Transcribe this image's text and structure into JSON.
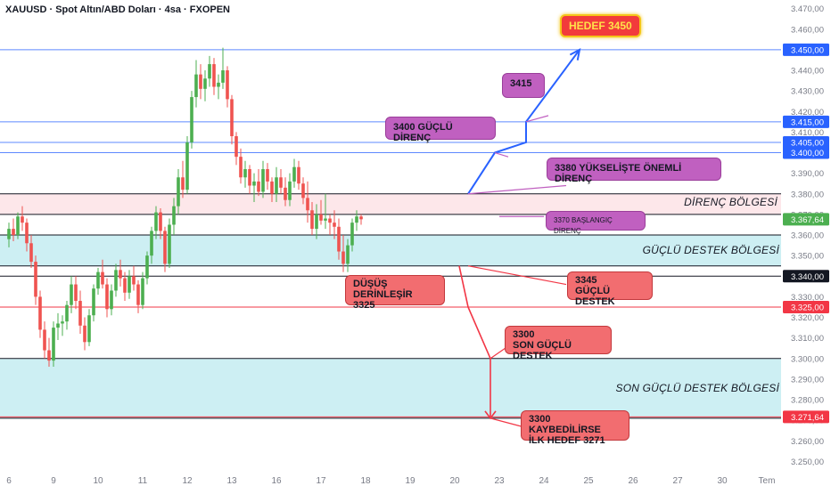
{
  "header": {
    "title": "XAUUSD · Spot Altın/ABD Doları · 4sa · FXOPEN"
  },
  "colors": {
    "up": "#26a69a",
    "up_fill": "#4caf50",
    "down": "#ef5350",
    "blue": "#2962ff",
    "resistance_zone": "#fde7ea",
    "support_zone": "#cdeff3",
    "note_purple": "#c060c0",
    "note_red": "#f26d70",
    "level_red": "#f23645",
    "axis_text": "#787b86"
  },
  "chart_data": {
    "type": "candlestick",
    "symbol": "XAUUSD",
    "timeframe": "4sa",
    "ylim": [
      3245,
      3472
    ],
    "y_ticks": [
      "3.250,00",
      "3.260,00",
      "3.270,00",
      "3.280,00",
      "3.290,00",
      "3.300,00",
      "3.310,00",
      "3.320,00",
      "3.330,00",
      "3.340,00",
      "3.350,00",
      "3.360,00",
      "3.370,00",
      "3.380,00",
      "3.390,00",
      "3.400,00",
      "3.410,00",
      "3.420,00",
      "3.430,00",
      "3.440,00",
      "3.450,00",
      "3.460,00",
      "3.470,00"
    ],
    "y_tick_values": [
      3250,
      3260,
      3270,
      3280,
      3290,
      3300,
      3310,
      3320,
      3330,
      3340,
      3350,
      3360,
      3370,
      3380,
      3390,
      3400,
      3410,
      3420,
      3430,
      3440,
      3450,
      3460,
      3470
    ],
    "x_ticks": [
      "6",
      "9",
      "10",
      "11",
      "12",
      "13",
      "16",
      "17",
      "18",
      "19",
      "20",
      "23",
      "24",
      "25",
      "26",
      "27",
      "30",
      "Tem"
    ],
    "x_tick_index": [
      0,
      10,
      20,
      30,
      40,
      50,
      60,
      70,
      80,
      90,
      100,
      110,
      120,
      130,
      140,
      150,
      160,
      170
    ],
    "candles": [
      [
        3358,
        3366,
        3354,
        3363
      ],
      [
        3363,
        3368,
        3357,
        3360
      ],
      [
        3360,
        3371,
        3358,
        3369
      ],
      [
        3369,
        3374,
        3362,
        3366
      ],
      [
        3366,
        3368,
        3352,
        3356
      ],
      [
        3356,
        3360,
        3344,
        3347
      ],
      [
        3347,
        3350,
        3326,
        3330
      ],
      [
        3330,
        3333,
        3310,
        3314
      ],
      [
        3314,
        3318,
        3300,
        3304
      ],
      [
        3304,
        3310,
        3296,
        3299
      ],
      [
        3299,
        3318,
        3296,
        3315
      ],
      [
        3315,
        3322,
        3309,
        3317
      ],
      [
        3317,
        3321,
        3311,
        3318
      ],
      [
        3318,
        3328,
        3314,
        3326
      ],
      [
        3326,
        3340,
        3322,
        3336
      ],
      [
        3336,
        3340,
        3324,
        3328
      ],
      [
        3328,
        3333,
        3312,
        3316
      ],
      [
        3316,
        3320,
        3304,
        3308
      ],
      [
        3308,
        3324,
        3306,
        3321
      ],
      [
        3321,
        3336,
        3318,
        3334
      ],
      [
        3334,
        3344,
        3331,
        3342
      ],
      [
        3342,
        3348,
        3334,
        3336
      ],
      [
        3336,
        3339,
        3320,
        3324
      ],
      [
        3324,
        3336,
        3321,
        3333
      ],
      [
        3333,
        3346,
        3330,
        3343
      ],
      [
        3343,
        3348,
        3335,
        3339
      ],
      [
        3339,
        3342,
        3328,
        3332
      ],
      [
        3332,
        3343,
        3329,
        3340
      ],
      [
        3340,
        3345,
        3333,
        3336
      ],
      [
        3336,
        3338,
        3322,
        3326
      ],
      [
        3326,
        3342,
        3324,
        3339
      ],
      [
        3339,
        3352,
        3336,
        3350
      ],
      [
        3350,
        3364,
        3346,
        3362
      ],
      [
        3362,
        3374,
        3358,
        3371
      ],
      [
        3371,
        3373,
        3358,
        3362
      ],
      [
        3362,
        3364,
        3342,
        3346
      ],
      [
        3346,
        3368,
        3344,
        3365
      ],
      [
        3365,
        3378,
        3360,
        3374
      ],
      [
        3374,
        3392,
        3370,
        3388
      ],
      [
        3388,
        3396,
        3378,
        3382
      ],
      [
        3382,
        3408,
        3380,
        3405
      ],
      [
        3405,
        3430,
        3402,
        3427
      ],
      [
        3427,
        3445,
        3422,
        3438
      ],
      [
        3438,
        3443,
        3426,
        3431
      ],
      [
        3431,
        3440,
        3425,
        3436
      ],
      [
        3436,
        3447,
        3432,
        3443
      ],
      [
        3443,
        3446,
        3428,
        3432
      ],
      [
        3432,
        3438,
        3426,
        3434
      ],
      [
        3434,
        3451,
        3431,
        3440
      ],
      [
        3440,
        3442,
        3422,
        3426
      ],
      [
        3426,
        3428,
        3404,
        3408
      ],
      [
        3408,
        3410,
        3394,
        3398
      ],
      [
        3398,
        3402,
        3385,
        3388
      ],
      [
        3388,
        3396,
        3383,
        3392
      ],
      [
        3392,
        3394,
        3380,
        3384
      ],
      [
        3384,
        3390,
        3376,
        3386
      ],
      [
        3386,
        3392,
        3379,
        3381
      ],
      [
        3381,
        3396,
        3378,
        3392
      ],
      [
        3392,
        3395,
        3382,
        3386
      ],
      [
        3386,
        3388,
        3376,
        3380
      ],
      [
        3380,
        3393,
        3376,
        3388
      ],
      [
        3388,
        3392,
        3380,
        3383
      ],
      [
        3383,
        3388,
        3374,
        3377
      ],
      [
        3377,
        3390,
        3374,
        3386
      ],
      [
        3386,
        3397,
        3383,
        3393
      ],
      [
        3393,
        3396,
        3382,
        3385
      ],
      [
        3385,
        3388,
        3375,
        3378
      ],
      [
        3378,
        3386,
        3366,
        3372
      ],
      [
        3372,
        3376,
        3360,
        3363
      ],
      [
        3363,
        3375,
        3358,
        3370
      ],
      [
        3370,
        3377,
        3365,
        3367
      ],
      [
        3367,
        3380,
        3363,
        3368
      ],
      [
        3368,
        3370,
        3360,
        3366
      ],
      [
        3366,
        3372,
        3358,
        3364
      ],
      [
        3364,
        3368,
        3348,
        3352
      ],
      [
        3352,
        3360,
        3342,
        3346
      ],
      [
        3346,
        3358,
        3342,
        3355
      ],
      [
        3355,
        3368,
        3352,
        3366
      ],
      [
        3366,
        3372,
        3362,
        3369
      ],
      [
        3369,
        3370,
        3365,
        3367.64
      ]
    ],
    "horizontal_levels": [
      {
        "value": 3450,
        "label": "3.450,00",
        "style": "blue"
      },
      {
        "value": 3415,
        "label": "3.415,00",
        "style": "blue"
      },
      {
        "value": 3405,
        "label": "3.405,00",
        "style": "blue"
      },
      {
        "value": 3400,
        "label": "3.400,00",
        "style": "blue"
      },
      {
        "value": 3367.64,
        "label": "3.367,64",
        "style": "current"
      },
      {
        "value": 3340,
        "label": "3.340,00",
        "style": "black"
      },
      {
        "value": 3325,
        "label": "3.325,00",
        "style": "red"
      },
      {
        "value": 3271.64,
        "label": "3.271,64",
        "style": "red"
      }
    ],
    "zones": [
      {
        "label": "DİRENÇ BÖLGESİ",
        "from": 3370,
        "to": 3380,
        "color": "resistance_zone"
      },
      {
        "label": "GÜÇLÜ DESTEK BÖLGESİ",
        "from": 3345,
        "to": 3360,
        "color": "support_zone"
      },
      {
        "label": "SON GÜÇLÜ DESTEK BÖLGESİ",
        "from": 3271,
        "to": 3300,
        "color": "support_zone"
      }
    ],
    "bullish_path": [
      [
        103,
        3380
      ],
      [
        109,
        3400
      ],
      [
        116,
        3405
      ],
      [
        116,
        3415
      ],
      [
        128,
        3450
      ]
    ],
    "bearish_path": [
      [
        101,
        3345
      ],
      [
        103,
        3325
      ],
      [
        108,
        3300
      ],
      [
        108,
        3271
      ]
    ],
    "annotations": [
      {
        "text": "HEDEF 3450",
        "style": "target"
      },
      {
        "text": "3415",
        "style": "purple"
      },
      {
        "text": "3400 GÜÇLÜ DİRENÇ",
        "style": "purple"
      },
      {
        "text": "3380 YÜKSELİŞTE ÖNEMLİ DİRENÇ",
        "style": "purple"
      },
      {
        "text": "3370 BAŞLANGIÇ DİRENÇ",
        "style": "purple"
      },
      {
        "text": "DÜŞÜŞ DERİNLEŞİR\n3325",
        "style": "red"
      },
      {
        "text": "3345\nGÜÇLÜ DESTEK",
        "style": "red"
      },
      {
        "text": "3300\nSON GÜÇLÜ DESTEK",
        "style": "red"
      },
      {
        "text": "3300 KAYBEDİLİRSE\nİLK HEDEF 3271",
        "style": "red"
      }
    ]
  }
}
